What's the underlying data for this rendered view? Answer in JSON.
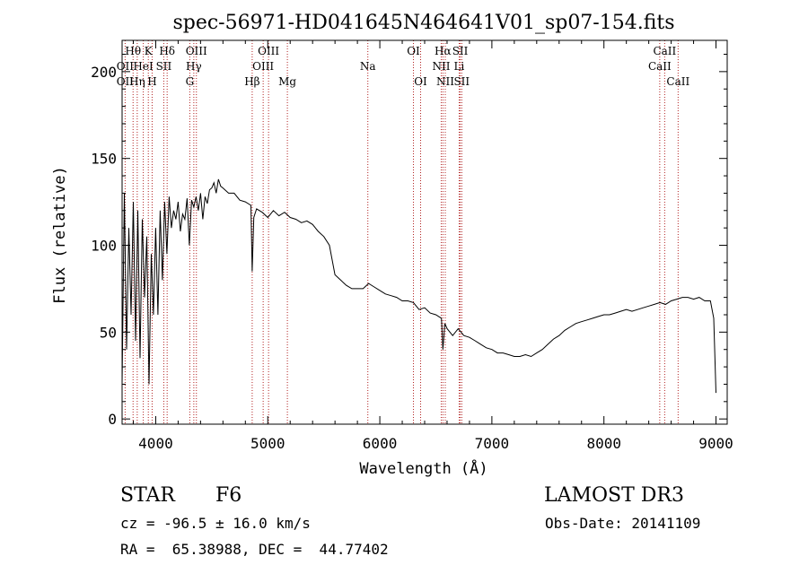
{
  "colors": {
    "spectrum": "#000000",
    "line_marker": "#b22222",
    "background": "#ffffff"
  },
  "chart_data": {
    "type": "line",
    "title": "spec-56971-HD041645N464641V01_sp07-154.fits",
    "xlabel": "Wavelength (Å)",
    "ylabel": "Flux (relative)",
    "xlim": [
      3700,
      9100
    ],
    "ylim": [
      -3,
      218
    ],
    "xticks": [
      4000,
      5000,
      6000,
      7000,
      8000,
      9000
    ],
    "yticks": [
      0,
      50,
      100,
      150,
      200
    ],
    "grid": false,
    "series": [
      {
        "x": [
          3700,
          3720,
          3740,
          3760,
          3780,
          3800,
          3820,
          3840,
          3860,
          3880,
          3900,
          3920,
          3940,
          3960,
          3980,
          4000,
          4020,
          4040,
          4060,
          4080,
          4100,
          4120,
          4140,
          4160,
          4180,
          4200,
          4220,
          4240,
          4260,
          4280,
          4300,
          4320,
          4340,
          4360,
          4380,
          4400,
          4420,
          4440,
          4460,
          4480,
          4500,
          4520,
          4540,
          4560,
          4580,
          4600,
          4650,
          4700,
          4750,
          4800,
          4850,
          4861,
          4875,
          4900,
          4950,
          5000,
          5050,
          5100,
          5150,
          5200,
          5250,
          5300,
          5350,
          5400,
          5450,
          5500,
          5550,
          5600,
          5650,
          5700,
          5750,
          5800,
          5850,
          5900,
          5950,
          6000,
          6050,
          6100,
          6150,
          6200,
          6250,
          6300,
          6350,
          6400,
          6450,
          6500,
          6550,
          6563,
          6580,
          6600,
          6650,
          6700,
          6750,
          6800,
          6850,
          6900,
          6950,
          7000,
          7050,
          7100,
          7150,
          7200,
          7250,
          7300,
          7350,
          7400,
          7450,
          7500,
          7550,
          7600,
          7650,
          7700,
          7750,
          7800,
          7850,
          7900,
          7950,
          8000,
          8050,
          8100,
          8150,
          8200,
          8250,
          8300,
          8350,
          8400,
          8450,
          8500,
          8550,
          8600,
          8650,
          8700,
          8750,
          8800,
          8850,
          8900,
          8950,
          8980,
          9000
        ],
        "y": [
          20,
          130,
          40,
          110,
          60,
          125,
          45,
          120,
          35,
          115,
          70,
          105,
          20,
          95,
          60,
          110,
          60,
          120,
          80,
          125,
          95,
          128,
          110,
          120,
          115,
          125,
          108,
          118,
          115,
          127,
          100,
          126,
          122,
          128,
          120,
          130,
          115,
          128,
          124,
          132,
          133,
          136,
          130,
          138,
          134,
          133,
          130,
          130,
          126,
          125,
          123,
          85,
          116,
          121,
          119,
          116,
          120,
          117,
          119,
          116,
          115,
          113,
          114,
          112,
          108,
          105,
          100,
          83,
          80,
          77,
          75,
          75,
          75,
          78,
          76,
          74,
          72,
          71,
          70,
          68,
          68,
          67,
          63,
          64,
          61,
          60,
          58,
          40,
          55,
          52,
          48,
          52,
          48,
          47,
          45,
          43,
          41,
          40,
          38,
          38,
          37,
          36,
          36,
          37,
          36,
          38,
          40,
          43,
          46,
          48,
          51,
          53,
          55,
          56,
          57,
          58,
          59,
          60,
          60,
          61,
          62,
          63,
          62,
          63,
          64,
          65,
          66,
          67,
          66,
          68,
          69,
          70,
          70,
          69,
          70,
          68,
          68,
          58,
          15
        ]
      }
    ],
    "line_labels": [
      {
        "label": "Hθ",
        "wavelength": 3798,
        "row": 1
      },
      {
        "label": "K",
        "wavelength": 3934,
        "row": 1
      },
      {
        "label": "Hδ",
        "wavelength": 4102,
        "row": 1
      },
      {
        "label": "OIII",
        "wavelength": 4363,
        "row": 1
      },
      {
        "label": "OIII",
        "wavelength": 5007,
        "row": 1
      },
      {
        "label": "OI",
        "wavelength": 6300,
        "row": 1
      },
      {
        "label": "Hα",
        "wavelength": 6563,
        "row": 1
      },
      {
        "label": "SII",
        "wavelength": 6717,
        "row": 1
      },
      {
        "label": "CaII",
        "wavelength": 8542,
        "row": 1
      },
      {
        "label": "OII",
        "wavelength": 3727,
        "row": 2
      },
      {
        "label": "HeI",
        "wavelength": 3889,
        "row": 2
      },
      {
        "label": "SII",
        "wavelength": 4072,
        "row": 2
      },
      {
        "label": "Hγ",
        "wavelength": 4340,
        "row": 2
      },
      {
        "label": "OIII",
        "wavelength": 4959,
        "row": 2
      },
      {
        "label": "Na",
        "wavelength": 5893,
        "row": 2
      },
      {
        "label": "NII",
        "wavelength": 6548,
        "row": 2
      },
      {
        "label": "Li",
        "wavelength": 6708,
        "row": 2
      },
      {
        "label": "CaII",
        "wavelength": 8498,
        "row": 2
      },
      {
        "label": "OII",
        "wavelength": 3727,
        "row": 3
      },
      {
        "label": "Hη",
        "wavelength": 3835,
        "row": 3
      },
      {
        "label": "H",
        "wavelength": 3968,
        "row": 3
      },
      {
        "label": "G",
        "wavelength": 4304,
        "row": 3
      },
      {
        "label": "Hβ",
        "wavelength": 4861,
        "row": 3
      },
      {
        "label": "Mg",
        "wavelength": 5175,
        "row": 3
      },
      {
        "label": "OI",
        "wavelength": 6364,
        "row": 3
      },
      {
        "label": "NII",
        "wavelength": 6584,
        "row": 3
      },
      {
        "label": "SII",
        "wavelength": 6731,
        "row": 3
      },
      {
        "label": "CaII",
        "wavelength": 8662,
        "row": 3
      }
    ],
    "line_markers": [
      3727,
      3798,
      3835,
      3889,
      3934,
      3968,
      4072,
      4102,
      4304,
      4340,
      4363,
      4861,
      4959,
      5007,
      5175,
      5893,
      6300,
      6364,
      6548,
      6563,
      6584,
      6708,
      6717,
      6731,
      8498,
      8542,
      8662
    ]
  },
  "info": {
    "object_class": "STAR",
    "subclass": "F6",
    "survey": "LAMOST DR3",
    "redshift": "cz = -96.5 ± 16.0 km/s",
    "obs_date": "Obs-Date: 20141109",
    "coords": "RA =  65.38988, DEC =  44.77402"
  }
}
